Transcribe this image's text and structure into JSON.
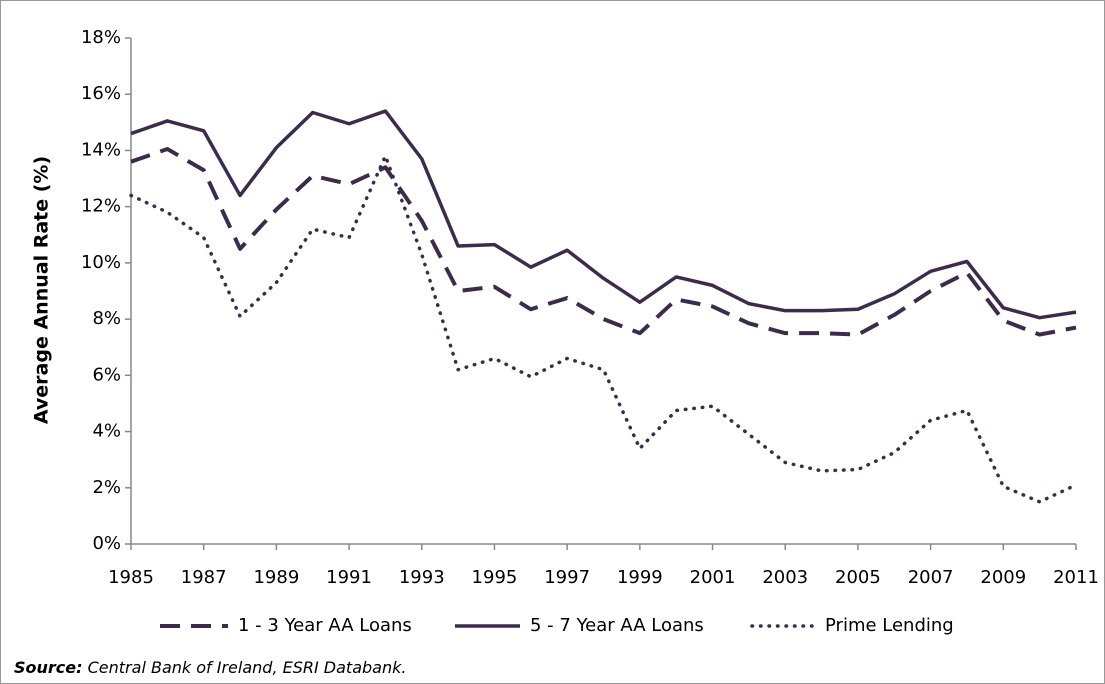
{
  "chart_data": {
    "type": "line",
    "y_label": "Average Annual Rate (%)",
    "x": [
      1985,
      1986,
      1987,
      1988,
      1989,
      1990,
      1991,
      1992,
      1993,
      1994,
      1995,
      1996,
      1997,
      1998,
      1999,
      2000,
      2001,
      2002,
      2003,
      2004,
      2005,
      2006,
      2007,
      2008,
      2009,
      2010,
      2011
    ],
    "xlim": [
      1985,
      2011
    ],
    "xticks": [
      1985,
      1987,
      1989,
      1991,
      1993,
      1995,
      1997,
      1999,
      2001,
      2003,
      2005,
      2007,
      2009,
      2011
    ],
    "ylim": [
      0,
      18
    ],
    "yticks": [
      {
        "value": 0,
        "label": "0%"
      },
      {
        "value": 2,
        "label": "2%"
      },
      {
        "value": 4,
        "label": "4%"
      },
      {
        "value": 6,
        "label": "6%"
      },
      {
        "value": 8,
        "label": "8%"
      },
      {
        "value": 10,
        "label": "10%"
      },
      {
        "value": 12,
        "label": "12%"
      },
      {
        "value": 14,
        "label": "14%"
      },
      {
        "value": 16,
        "label": "16%"
      },
      {
        "value": 18,
        "label": "18%"
      }
    ],
    "grid": false,
    "legend": "bottom",
    "series": [
      {
        "name": "1 - 3 Year AA Loans",
        "color": "#3d2b4b",
        "style": "dashed",
        "values": [
          13.6,
          14.05,
          13.3,
          10.5,
          11.9,
          13.1,
          12.8,
          13.4,
          11.5,
          9.0,
          9.15,
          8.35,
          8.75,
          8.0,
          7.5,
          8.7,
          8.45,
          7.85,
          7.5,
          7.5,
          7.45,
          8.15,
          9.0,
          9.65,
          7.95,
          7.45,
          7.7
        ]
      },
      {
        "name": "5 - 7 Year AA Loans",
        "color": "#3d2b4b",
        "style": "solid",
        "values": [
          14.6,
          15.05,
          14.7,
          12.4,
          14.1,
          15.35,
          14.95,
          15.4,
          13.7,
          10.6,
          10.65,
          9.85,
          10.45,
          9.45,
          8.6,
          9.5,
          9.2,
          8.55,
          8.3,
          8.3,
          8.35,
          8.9,
          9.7,
          10.05,
          8.4,
          8.05,
          8.25
        ]
      },
      {
        "name": "Prime Lending",
        "color": "#3d2b4b",
        "style": "dotted",
        "values": [
          12.4,
          11.8,
          10.9,
          8.1,
          9.3,
          11.2,
          10.9,
          13.8,
          10.3,
          6.2,
          6.6,
          5.95,
          6.6,
          6.2,
          3.4,
          4.75,
          4.9,
          3.9,
          2.9,
          2.6,
          2.65,
          3.25,
          4.4,
          4.75,
          2.05,
          1.5,
          2.1
        ]
      }
    ],
    "source_label": "Source:",
    "source_text": "Central Bank of Ireland, ESRI Databank."
  }
}
